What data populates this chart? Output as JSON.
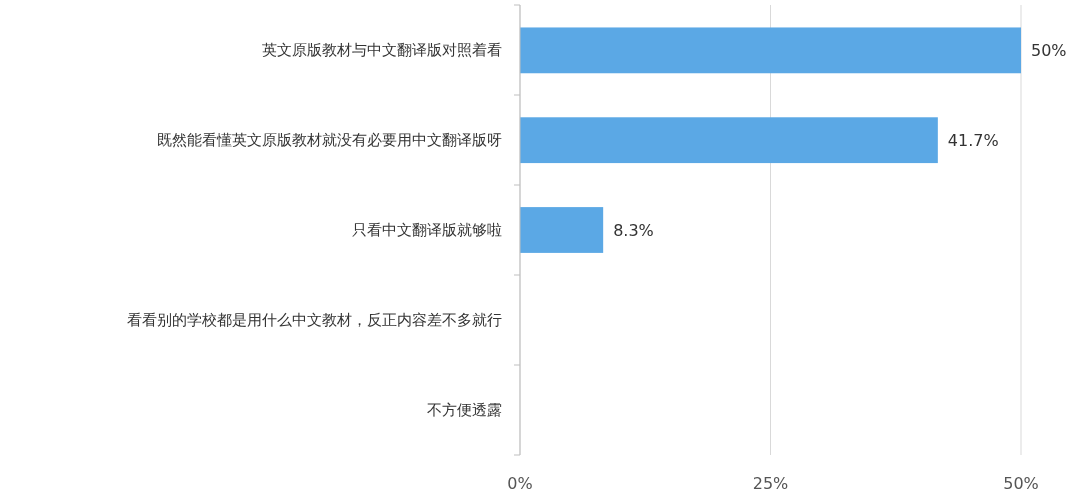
{
  "chart_data": {
    "type": "bar",
    "orientation": "horizontal",
    "categories": [
      "英文原版教材与中文翻译版对照着看",
      "既然能看懂英文原版教材就没有必要用中文翻译版呀",
      "只看中文翻译版就够啦",
      "看看别的学校都是用什么中文教材，反正内容差不多就行",
      "不方便透露"
    ],
    "values": [
      50,
      41.7,
      8.3,
      0,
      0
    ],
    "value_labels": [
      "50%",
      "41.7%",
      "8.3%",
      null,
      null
    ],
    "color": "#5ba8e5",
    "xlim": [
      0,
      50
    ],
    "xticks": [
      {
        "value": 0,
        "label": "0%"
      },
      {
        "value": 25,
        "label": "25%"
      },
      {
        "value": 50,
        "label": "50%"
      }
    ],
    "grid": "x"
  }
}
